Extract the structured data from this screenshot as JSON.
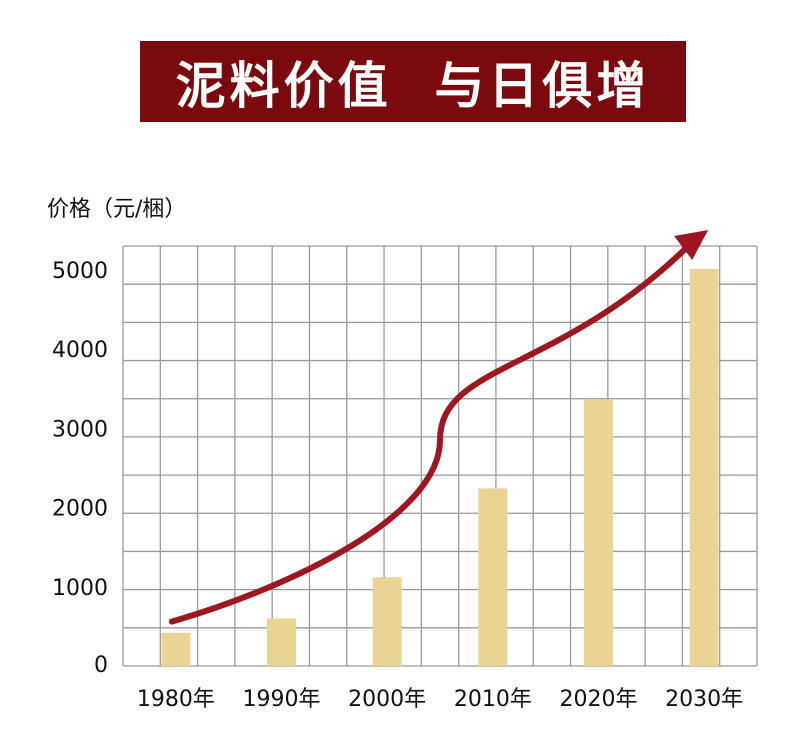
{
  "title": "泥料价值  与日俱增",
  "chart_data": {
    "type": "bar",
    "ylabel": "价格（元/梱）",
    "categories": [
      "1980年",
      "1990年",
      "2000年",
      "2010年",
      "2020年",
      "2030年"
    ],
    "values": [
      420,
      600,
      1120,
      2240,
      3360,
      5010
    ],
    "yticks": [
      0,
      1000,
      2000,
      3000,
      4000,
      5000
    ],
    "ylim": [
      0,
      5300
    ],
    "grid": true,
    "trend_arrow": true,
    "colors": {
      "bar": "#ead494",
      "arrow": "#9e1620",
      "grid": "#9a9a9a",
      "banner": "#7b0a0e"
    }
  }
}
